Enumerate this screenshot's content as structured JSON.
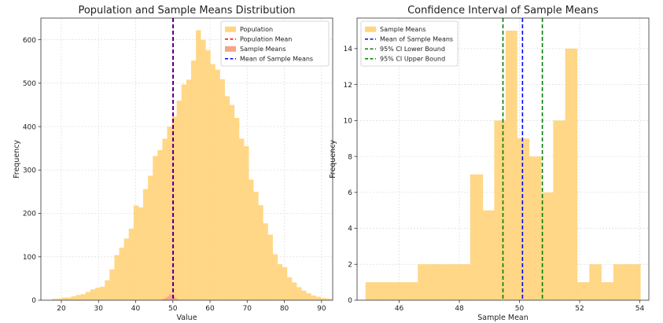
{
  "chart_data": [
    {
      "type": "histogram",
      "title": "Population and Sample Means Distribution",
      "xlabel": "Value",
      "ylabel": "Frequency",
      "xlim": [
        14.5,
        93
      ],
      "ylim": [
        0,
        650
      ],
      "xticks": [
        20,
        30,
        40,
        50,
        60,
        70,
        80,
        90
      ],
      "yticks": [
        0,
        100,
        200,
        300,
        400,
        500,
        600
      ],
      "grid": true,
      "legend_position": "top-right",
      "series": [
        {
          "name": "Population",
          "kind": "histogram",
          "color": "#FFD580",
          "bin_start": 17.5,
          "bin_width": 1.29,
          "values": [
            3,
            4,
            6,
            6,
            9,
            12,
            14,
            19,
            25,
            29,
            31,
            46,
            71,
            104,
            121,
            142,
            165,
            218,
            214,
            256,
            287,
            332,
            346,
            372,
            400,
            423,
            460,
            497,
            508,
            552,
            622,
            600,
            576,
            544,
            531,
            509,
            470,
            450,
            420,
            372,
            355,
            278,
            250,
            219,
            177,
            151,
            106,
            83,
            76,
            53,
            41,
            30,
            22,
            16,
            11,
            8,
            5,
            4,
            2,
            1,
            1
          ]
        },
        {
          "name": "Population Mean",
          "kind": "vline",
          "color": "#FF0000",
          "value": 50.0
        },
        {
          "name": "Sample Means",
          "kind": "histogram",
          "color": "#F4A582",
          "bin_start": 47.0,
          "bin_width": 0.5,
          "values": [
            2,
            4,
            6,
            9,
            14,
            12,
            8,
            5,
            2,
            1
          ]
        },
        {
          "name": "Mean of Sample Means",
          "kind": "vline",
          "color": "#0000FF",
          "value": 50.1
        }
      ]
    },
    {
      "type": "histogram",
      "title": "Confidence Interval of Sample Means",
      "xlabel": "Sample Mean",
      "ylabel": "Frequency",
      "xlim": [
        44.6,
        54.3
      ],
      "ylim": [
        0,
        15.7
      ],
      "xticks": [
        46,
        48,
        50,
        52,
        54
      ],
      "yticks": [
        0,
        2,
        4,
        6,
        8,
        10,
        12,
        14
      ],
      "grid": true,
      "legend_position": "top-left",
      "series": [
        {
          "name": "Sample Means",
          "kind": "histogram",
          "color": "#FFD580",
          "bin_edges": [
            44.88,
            45.46,
            46.04,
            46.62,
            47.2,
            47.78,
            48.36,
            48.78,
            49.16,
            49.54,
            49.92,
            50.32,
            50.72,
            51.12,
            51.52,
            51.92,
            52.32,
            52.72,
            53.12,
            53.52,
            53.92,
            54.02
          ],
          "values": [
            1,
            1,
            1,
            2,
            2,
            2,
            7,
            5,
            10,
            15,
            9,
            8,
            6,
            10,
            14,
            1,
            2,
            1,
            2,
            2,
            2
          ]
        },
        {
          "name": "Mean of Sample Means",
          "kind": "vline",
          "color": "#0000FF",
          "value": 50.1
        },
        {
          "name": "95% CI Lower Bound",
          "kind": "vline",
          "color": "#008000",
          "value": 49.45
        },
        {
          "name": "95% CI Upper Bound",
          "kind": "vline",
          "color": "#008000",
          "value": 50.76
        }
      ]
    }
  ]
}
